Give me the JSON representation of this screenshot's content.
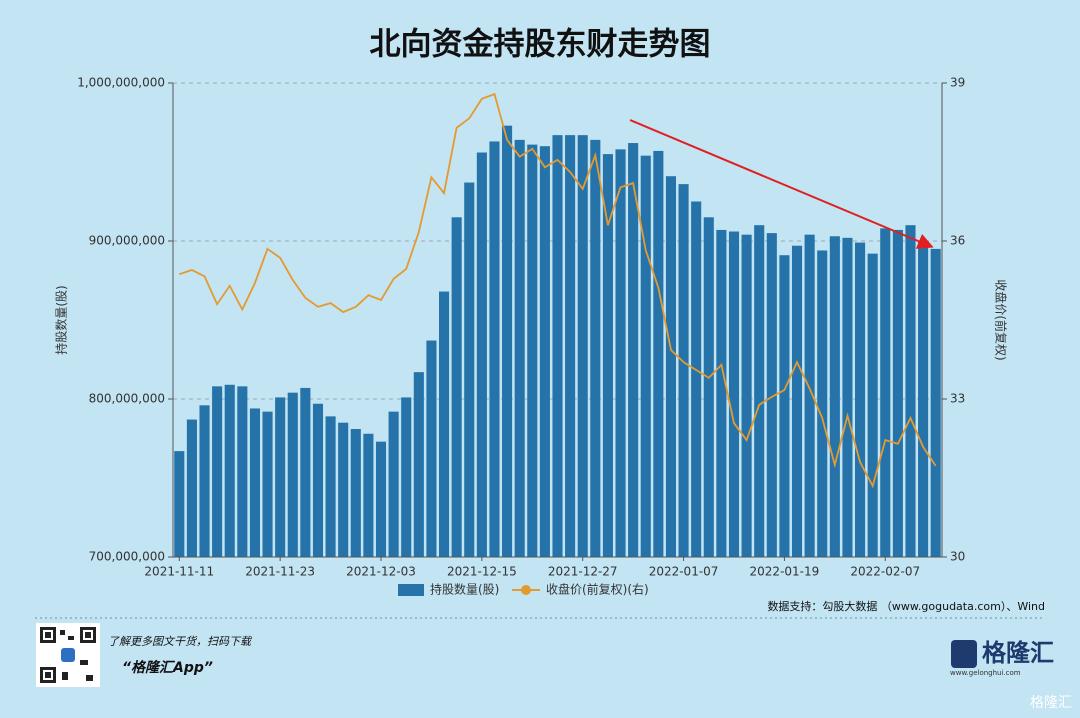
{
  "chart_data": {
    "type": "bar_line",
    "title": "北向资金持股东财走势图",
    "ylabel": "持股数量(股)",
    "y2label": "收盘价(前复权)",
    "categories": [
      "2021-11-11",
      null,
      null,
      null,
      null,
      null,
      null,
      null,
      "2021-11-23",
      null,
      null,
      null,
      null,
      null,
      null,
      null,
      "2021-12-03",
      null,
      null,
      null,
      null,
      null,
      null,
      null,
      "2021-12-15",
      null,
      null,
      null,
      null,
      null,
      null,
      null,
      "2021-12-27",
      null,
      null,
      null,
      null,
      null,
      null,
      null,
      "2022-01-07",
      null,
      null,
      null,
      null,
      null,
      null,
      null,
      "2022-01-19",
      null,
      null,
      null,
      null,
      null,
      null,
      null,
      "2022-02-07",
      null,
      null,
      null,
      null
    ],
    "series": [
      {
        "name": "持股数量(股)",
        "color": "#2573a8",
        "values": [
          767000000,
          787000000,
          796000000,
          808000000,
          809000000,
          808000000,
          794000000,
          792000000,
          801000000,
          804000000,
          807000000,
          797000000,
          789000000,
          785000000,
          781000000,
          778000000,
          773000000,
          792000000,
          801000000,
          817000000,
          837000000,
          868000000,
          915000000,
          937000000,
          956000000,
          963000000,
          973000000,
          964000000,
          961000000,
          960000000,
          967000000,
          967000000,
          967000000,
          964000000,
          955000000,
          958000000,
          962000000,
          954000000,
          957000000,
          941000000,
          936000000,
          925000000,
          915000000,
          907000000,
          906000000,
          904000000,
          910000000,
          905000000,
          891000000,
          897000000,
          904000000,
          894000000,
          903000000,
          902000000,
          899000000,
          892000000,
          908000000,
          907000000,
          910000000,
          900000000,
          895000000
        ]
      },
      {
        "name": "收盘价(前复权)(右)",
        "color": "#e59a2f",
        "axis": "y2",
        "values": [
          35.37,
          35.45,
          35.33,
          34.8,
          35.15,
          34.7,
          35.2,
          35.85,
          35.68,
          35.26,
          34.92,
          34.75,
          34.82,
          34.65,
          34.75,
          34.97,
          34.88,
          35.28,
          35.47,
          36.17,
          37.21,
          36.91,
          38.15,
          38.33,
          38.7,
          38.79,
          37.92,
          37.6,
          37.75,
          37.4,
          37.54,
          37.31,
          36.99,
          37.63,
          36.3,
          37.02,
          37.1,
          35.83,
          35.11,
          33.93,
          33.7,
          33.55,
          33.4,
          33.65,
          32.54,
          32.22,
          32.89,
          33.04,
          33.17,
          33.7,
          33.2,
          32.64,
          31.75,
          32.68,
          31.8,
          31.35,
          32.22,
          32.15,
          32.64,
          32.09,
          31.73
        ]
      }
    ],
    "ylim": [
      700000000,
      1000000000
    ],
    "yticks": [
      {
        "value": 700000000,
        "label": "700,000,000"
      },
      {
        "value": 800000000,
        "label": "800,000,000"
      },
      {
        "value": 900000000,
        "label": "900,000,000"
      },
      {
        "value": 1000000000,
        "label": "1,000,000,000"
      }
    ],
    "y2lim": [
      30,
      39
    ],
    "y2ticks": [
      30,
      33,
      36,
      39
    ],
    "grid": true,
    "source": "数据支持：勾股大数据 （www.gogudata.com）、Wind"
  },
  "footer": {
    "promo": "了解更多图文干货，扫码下载",
    "app": "“格隆汇App”",
    "logo": "格隆汇",
    "site": "www.gelonghui.com",
    "watermark": "格隆汇"
  }
}
